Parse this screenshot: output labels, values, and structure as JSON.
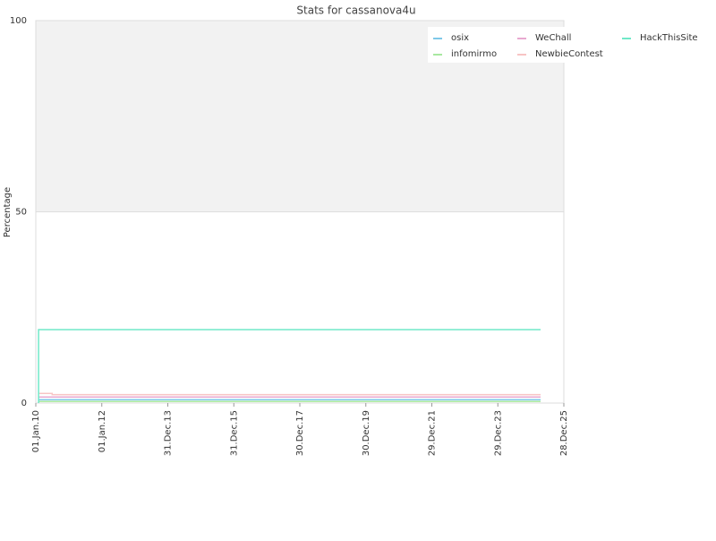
{
  "chart_data": {
    "type": "line",
    "title": "Stats for cassanova4u",
    "y_label": "Percentage",
    "xlim": [
      "01.Jan.10",
      "28.Dec.25"
    ],
    "xticks": [
      "01.Jan.10",
      "01.Jan.12",
      "31.Dec.13",
      "31.Dec.15",
      "30.Dec.17",
      "30.Dec.19",
      "29.Dec.21",
      "29.Dec.23",
      "28.Dec.25"
    ],
    "ylim": [
      0,
      100
    ],
    "yticks": [
      0,
      50,
      100
    ],
    "grid": true,
    "legend": "upper right",
    "series": [
      {
        "name": "osix",
        "color": "#7ec8e8",
        "x": [
          "01.Feb.10",
          "15.Apr.25"
        ],
        "values": [
          0.9,
          0.9
        ]
      },
      {
        "name": "infomirmo",
        "color": "#a8e8a0",
        "x": [
          "01.Feb.10",
          "15.Apr.25"
        ],
        "values": [
          0.4,
          0.4
        ]
      },
      {
        "name": "WeChall",
        "color": "#e8a8d0",
        "x": [
          "01.Feb.10",
          "15.Apr.25"
        ],
        "values": [
          1.6,
          1.6
        ]
      },
      {
        "name": "NewbieContest",
        "color": "#f8c4c4",
        "x": [
          "01.Feb.10",
          "01.Jul.10",
          "01.Jul.10",
          "15.Apr.25"
        ],
        "values": [
          2.5,
          2.5,
          2.2,
          2.2
        ]
      },
      {
        "name": "HackThisSite",
        "color": "#70e8c8",
        "x": [
          "01.Feb.10",
          "01.Feb.10",
          "15.Apr.25"
        ],
        "values": [
          0,
          19.2,
          19.2
        ]
      }
    ]
  }
}
